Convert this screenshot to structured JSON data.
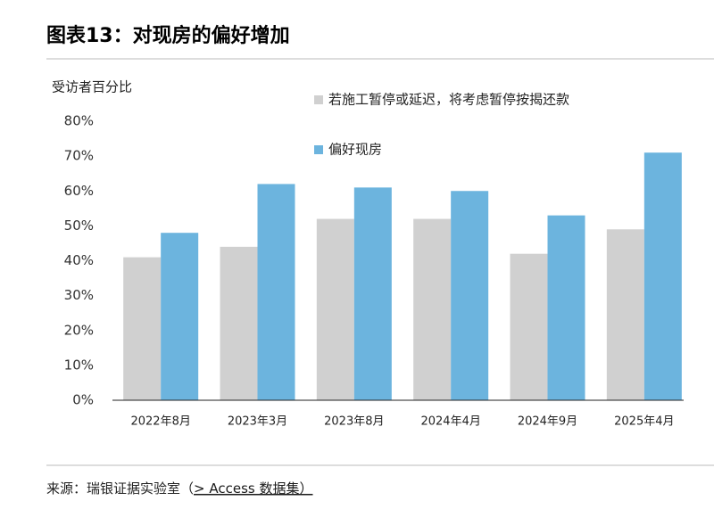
{
  "chart_data": {
    "type": "bar",
    "title": "图表13：对现房的偏好增加",
    "y_label": "受访者百分比",
    "categories": [
      "2022年8月",
      "2023年3月",
      "2023年8月",
      "2024年4月",
      "2024年9月",
      "2025年4月"
    ],
    "series": [
      {
        "name": "若施工暂停或延迟，将考虑暂停按揭还款",
        "color": "#d0d0d0",
        "values": [
          41,
          44,
          52,
          52,
          42,
          49
        ]
      },
      {
        "name": "偏好现房",
        "color": "#6cb4de",
        "values": [
          48,
          62,
          61,
          60,
          53,
          71
        ]
      }
    ],
    "ylim": [
      0,
      80
    ],
    "yticks": [
      {
        "value": 0,
        "label": "0%"
      },
      {
        "value": 10,
        "label": "10%"
      },
      {
        "value": 20,
        "label": "20%"
      },
      {
        "value": 30,
        "label": "30%"
      },
      {
        "value": 40,
        "label": "40%"
      },
      {
        "value": 50,
        "label": "50%"
      },
      {
        "value": 60,
        "label": "60%"
      },
      {
        "value": 70,
        "label": "70%"
      },
      {
        "value": 80,
        "label": "80%"
      }
    ],
    "grid": false
  },
  "source": {
    "prefix": "来源：瑞银证据实验室（",
    "link": "> Access 数据集）"
  }
}
